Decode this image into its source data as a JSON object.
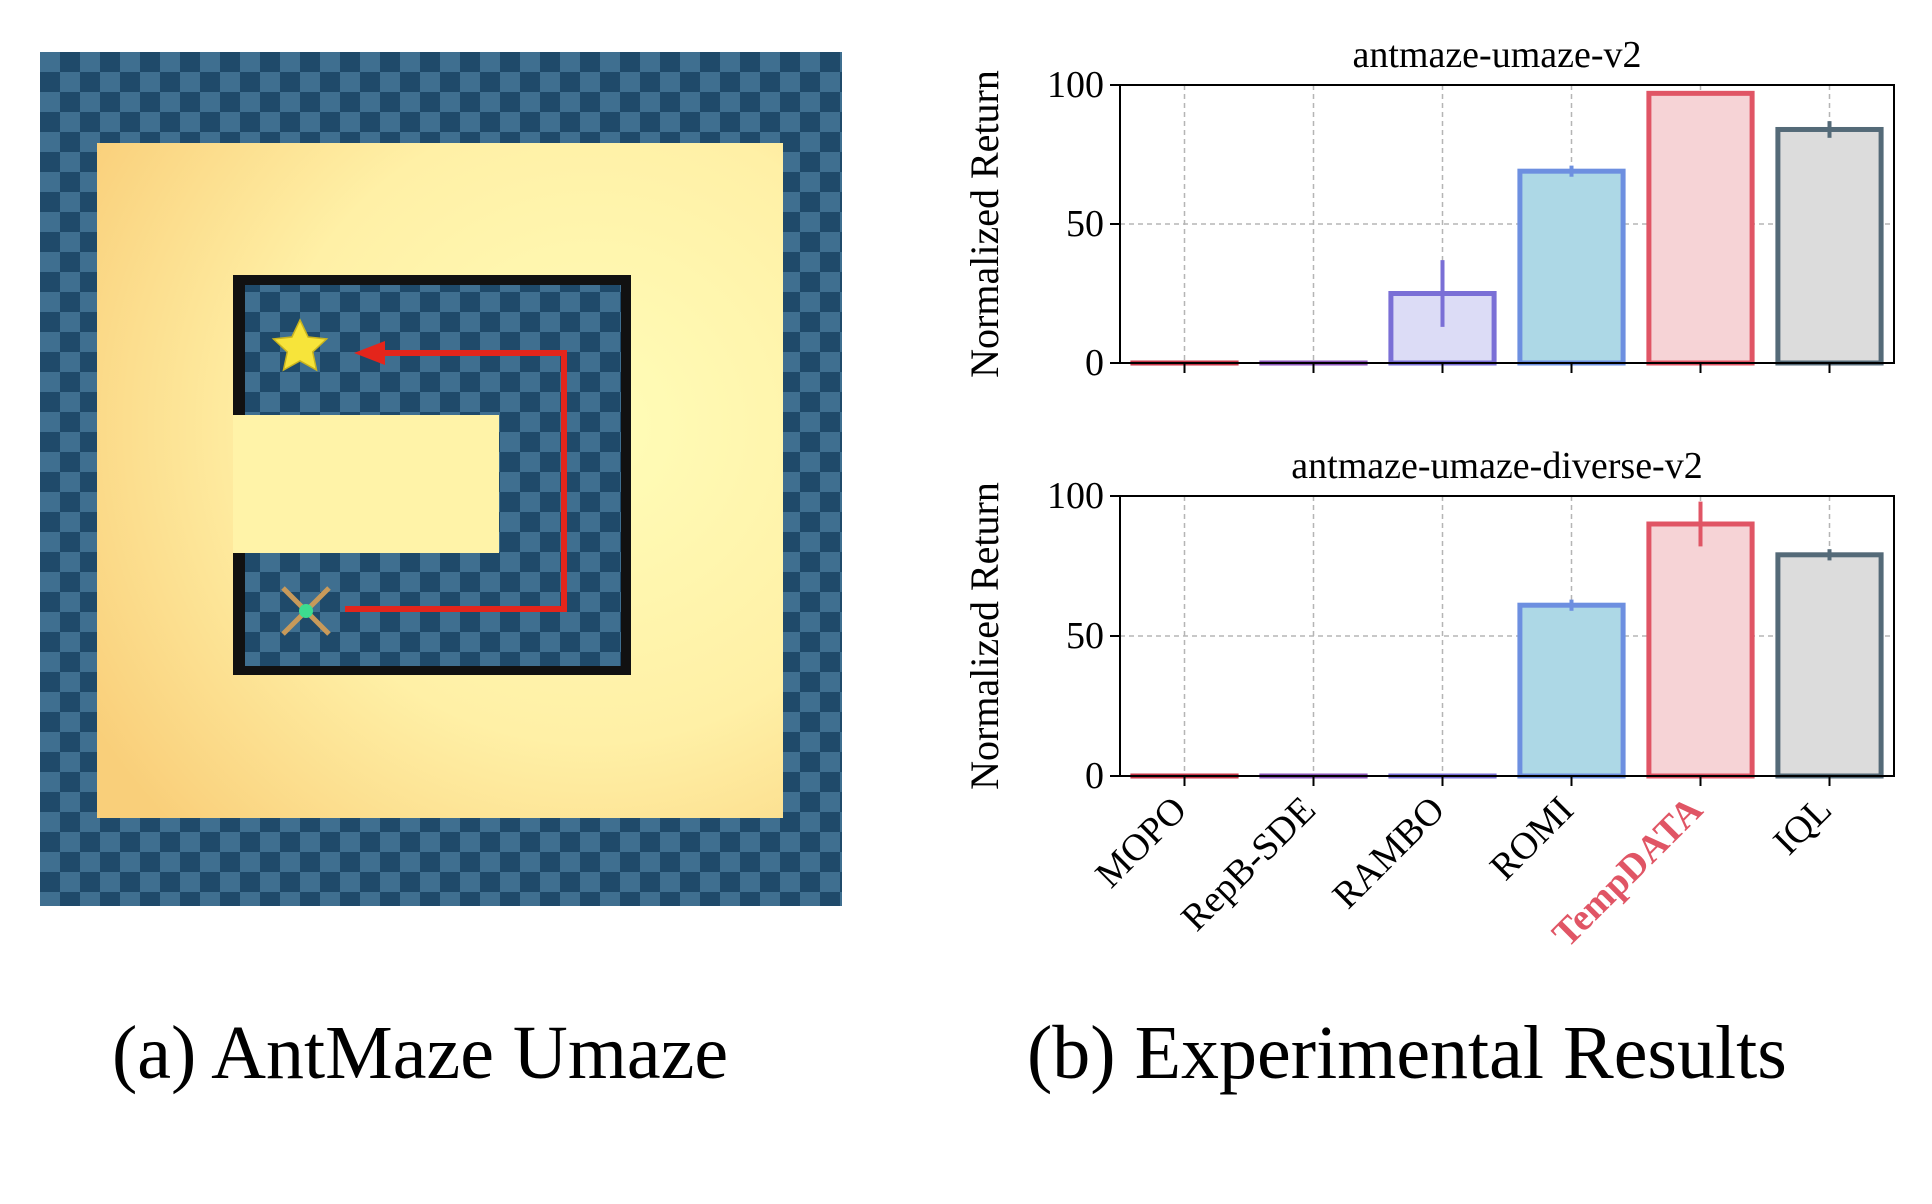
{
  "panel_a": {
    "caption": "(a) AntMaze Umaze",
    "icons": [
      "goal-star-icon",
      "ant-agent-icon",
      "path-arrow-icon"
    ],
    "colors": {
      "floor_dark": "#1f4a6a",
      "floor_light": "#3f6f90",
      "sand_center": "#fff6b0",
      "sand_edge": "#f9d27e",
      "wall": "#111111",
      "path": "#e4251b",
      "star": "#f7e43a"
    }
  },
  "panel_b": {
    "caption": "(b) Experimental Results"
  },
  "chart_data": [
    {
      "type": "bar",
      "title": "antmaze-umaze-v2",
      "ylabel": "Normalized Return",
      "xlabel": "",
      "ylim": [
        0,
        100
      ],
      "yticks": [
        "0",
        "50",
        "100"
      ],
      "grid": true,
      "categories": [
        "MOPO",
        "RepB-SDE",
        "RAMBO",
        "ROMI",
        "TempDATA",
        "IQL"
      ],
      "values": [
        0,
        0,
        25,
        69,
        97,
        84
      ],
      "errors": [
        0,
        0,
        12,
        2,
        0,
        3
      ],
      "show_tick_labels": false
    },
    {
      "type": "bar",
      "title": "antmaze-umaze-diverse-v2",
      "ylabel": "Normalized Return",
      "xlabel": "",
      "ylim": [
        0,
        100
      ],
      "yticks": [
        "0",
        "50",
        "100"
      ],
      "grid": true,
      "categories": [
        "MOPO",
        "RepB-SDE",
        "RAMBO",
        "ROMI",
        "TempDATA",
        "IQL"
      ],
      "values": [
        0,
        0,
        0,
        61,
        90,
        79
      ],
      "errors": [
        0,
        0,
        0,
        2,
        8,
        2
      ],
      "show_tick_labels": true
    }
  ],
  "bar_style": {
    "fills": [
      "#f6d3d6",
      "#ecdff5",
      "#dcdcf6",
      "#add8e6",
      "#f6d3d6",
      "#dcdcdc"
    ],
    "edges": [
      "#c8384a",
      "#8a55b8",
      "#7a6fd6",
      "#6d8fe0",
      "#e05565",
      "#546a78"
    ],
    "highlight_category": "TempDATA",
    "highlight_color": "#e05565"
  }
}
